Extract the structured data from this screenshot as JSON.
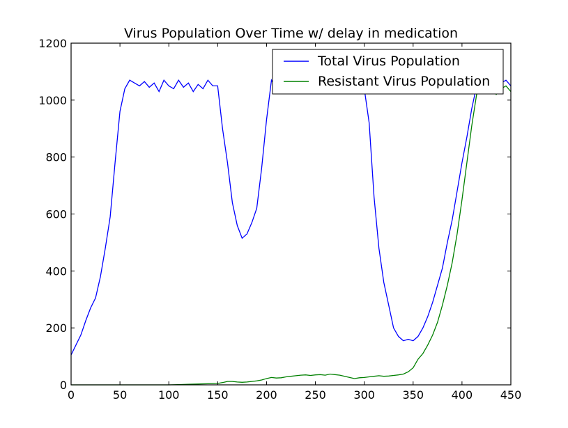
{
  "chart_data": {
    "type": "line",
    "title": "Virus Population Over Time w/ delay in medication",
    "xlabel": "",
    "ylabel": "",
    "xlim": [
      0,
      450
    ],
    "ylim": [
      0,
      1200
    ],
    "xticks": [
      0,
      50,
      100,
      150,
      200,
      250,
      300,
      350,
      400,
      450
    ],
    "yticks": [
      0,
      200,
      400,
      600,
      800,
      1000,
      1200
    ],
    "grid": false,
    "legend_position": "top-right",
    "series": [
      {
        "name": "Total Virus Population",
        "color": "#0000ff",
        "x": [
          0,
          5,
          10,
          15,
          20,
          25,
          30,
          35,
          40,
          45,
          50,
          55,
          60,
          65,
          70,
          75,
          80,
          85,
          90,
          95,
          100,
          105,
          110,
          115,
          120,
          125,
          130,
          135,
          140,
          145,
          150,
          155,
          160,
          165,
          170,
          175,
          180,
          185,
          190,
          195,
          200,
          205,
          210,
          215,
          220,
          225,
          230,
          235,
          240,
          245,
          250,
          255,
          260,
          265,
          270,
          275,
          280,
          285,
          290,
          295,
          300,
          305,
          310,
          315,
          320,
          325,
          330,
          335,
          340,
          345,
          350,
          355,
          360,
          365,
          370,
          375,
          380,
          385,
          390,
          395,
          400,
          405,
          410,
          415,
          420,
          425,
          430,
          435,
          440,
          445,
          450
        ],
        "y": [
          105,
          140,
          175,
          225,
          270,
          305,
          380,
          480,
          590,
          780,
          960,
          1040,
          1070,
          1060,
          1050,
          1065,
          1045,
          1060,
          1030,
          1070,
          1050,
          1040,
          1070,
          1045,
          1060,
          1030,
          1055,
          1040,
          1070,
          1050,
          1050,
          900,
          780,
          640,
          560,
          515,
          530,
          570,
          620,
          760,
          930,
          1070,
          1040,
          1060,
          1030,
          1060,
          1040,
          1050,
          1030,
          1060,
          1040,
          1050,
          1030,
          1060,
          1040,
          1045,
          1030,
          1050,
          1040,
          1030,
          1040,
          920,
          660,
          480,
          360,
          280,
          200,
          170,
          155,
          160,
          155,
          170,
          200,
          240,
          290,
          350,
          410,
          500,
          580,
          680,
          780,
          870,
          970,
          1050,
          1060,
          1040,
          1080,
          1030,
          1060,
          1070,
          1050
        ]
      },
      {
        "name": "Resistant Virus Population",
        "color": "#008000",
        "x": [
          0,
          10,
          20,
          30,
          40,
          50,
          60,
          70,
          80,
          90,
          100,
          110,
          120,
          130,
          140,
          150,
          155,
          160,
          165,
          170,
          175,
          180,
          185,
          190,
          195,
          200,
          205,
          210,
          215,
          220,
          225,
          230,
          235,
          240,
          245,
          250,
          255,
          260,
          265,
          270,
          275,
          280,
          285,
          290,
          295,
          300,
          305,
          310,
          315,
          320,
          325,
          330,
          335,
          340,
          345,
          350,
          355,
          360,
          365,
          370,
          375,
          380,
          385,
          390,
          395,
          400,
          405,
          410,
          415,
          420,
          425,
          430,
          435,
          440,
          445,
          450
        ],
        "y": [
          0,
          0,
          0,
          0,
          0,
          0,
          0,
          0,
          0,
          0,
          0,
          1,
          2,
          3,
          4,
          5,
          8,
          12,
          12,
          10,
          9,
          10,
          12,
          14,
          17,
          22,
          26,
          24,
          25,
          28,
          30,
          32,
          34,
          35,
          33,
          35,
          36,
          34,
          38,
          36,
          34,
          30,
          26,
          22,
          25,
          26,
          28,
          30,
          32,
          30,
          31,
          33,
          35,
          38,
          46,
          60,
          90,
          110,
          140,
          175,
          220,
          280,
          350,
          430,
          530,
          650,
          780,
          910,
          1020,
          1040,
          1030,
          1050,
          1020,
          1040,
          1050,
          1030
        ]
      }
    ]
  }
}
